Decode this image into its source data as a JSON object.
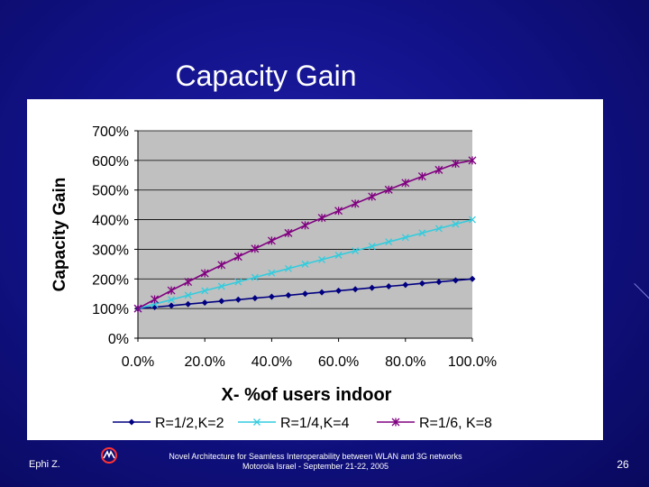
{
  "slide": {
    "title": "Capacity Gain",
    "footer_author": "Ephi Z.",
    "footer_line1": "Novel Architecture for Seamless Interoperability between WLAN and 3G networks",
    "footer_line2": "Motorola Israel  - September 21-22, 2005",
    "page_number": "26",
    "logo_icon": "motorola-logo-icon",
    "background_color": "#12128a"
  },
  "chart_data": {
    "type": "line",
    "xlabel": "X- %of users indoor",
    "ylabel": "Capacity Gain",
    "x": [
      0,
      5,
      10,
      15,
      20,
      25,
      30,
      35,
      40,
      45,
      50,
      55,
      60,
      65,
      70,
      75,
      80,
      85,
      90,
      95,
      100
    ],
    "x_tick_labels": [
      "0.0%",
      "20.0%",
      "40.0%",
      "60.0%",
      "80.0%",
      "100.0%"
    ],
    "x_ticks": [
      0,
      20,
      40,
      60,
      80,
      100
    ],
    "y_tick_labels": [
      "0%",
      "100%",
      "200%",
      "300%",
      "400%",
      "500%",
      "600%",
      "700%"
    ],
    "y_ticks": [
      0,
      100,
      200,
      300,
      400,
      500,
      600,
      700
    ],
    "xlim": [
      0,
      100
    ],
    "ylim": [
      0,
      700
    ],
    "plot_background": "#c0c0c0",
    "grid": "horizontal",
    "legend_position": "bottom",
    "series": [
      {
        "name": "R=1/2,K=2",
        "color": "#000080",
        "marker": "diamond",
        "values": [
          100,
          105,
          110,
          115,
          120,
          125,
          130,
          135,
          140,
          145,
          150,
          155,
          160,
          165,
          170,
          175,
          180,
          185,
          190,
          195,
          200
        ]
      },
      {
        "name": "R=1/4,K=4",
        "color": "#33ccdd",
        "marker": "x",
        "values": [
          100,
          115,
          130,
          145,
          160,
          175,
          190,
          205,
          220,
          235,
          250,
          265,
          280,
          295,
          310,
          325,
          340,
          355,
          370,
          385,
          400
        ]
      },
      {
        "name": "R=1/6, K=8",
        "color": "#800080",
        "marker": "star",
        "values": [
          100,
          131,
          161,
          190,
          219,
          247,
          275,
          302,
          329,
          355,
          381,
          406,
          430,
          454,
          478,
          501,
          524,
          546,
          568,
          589,
          600
        ]
      }
    ]
  }
}
